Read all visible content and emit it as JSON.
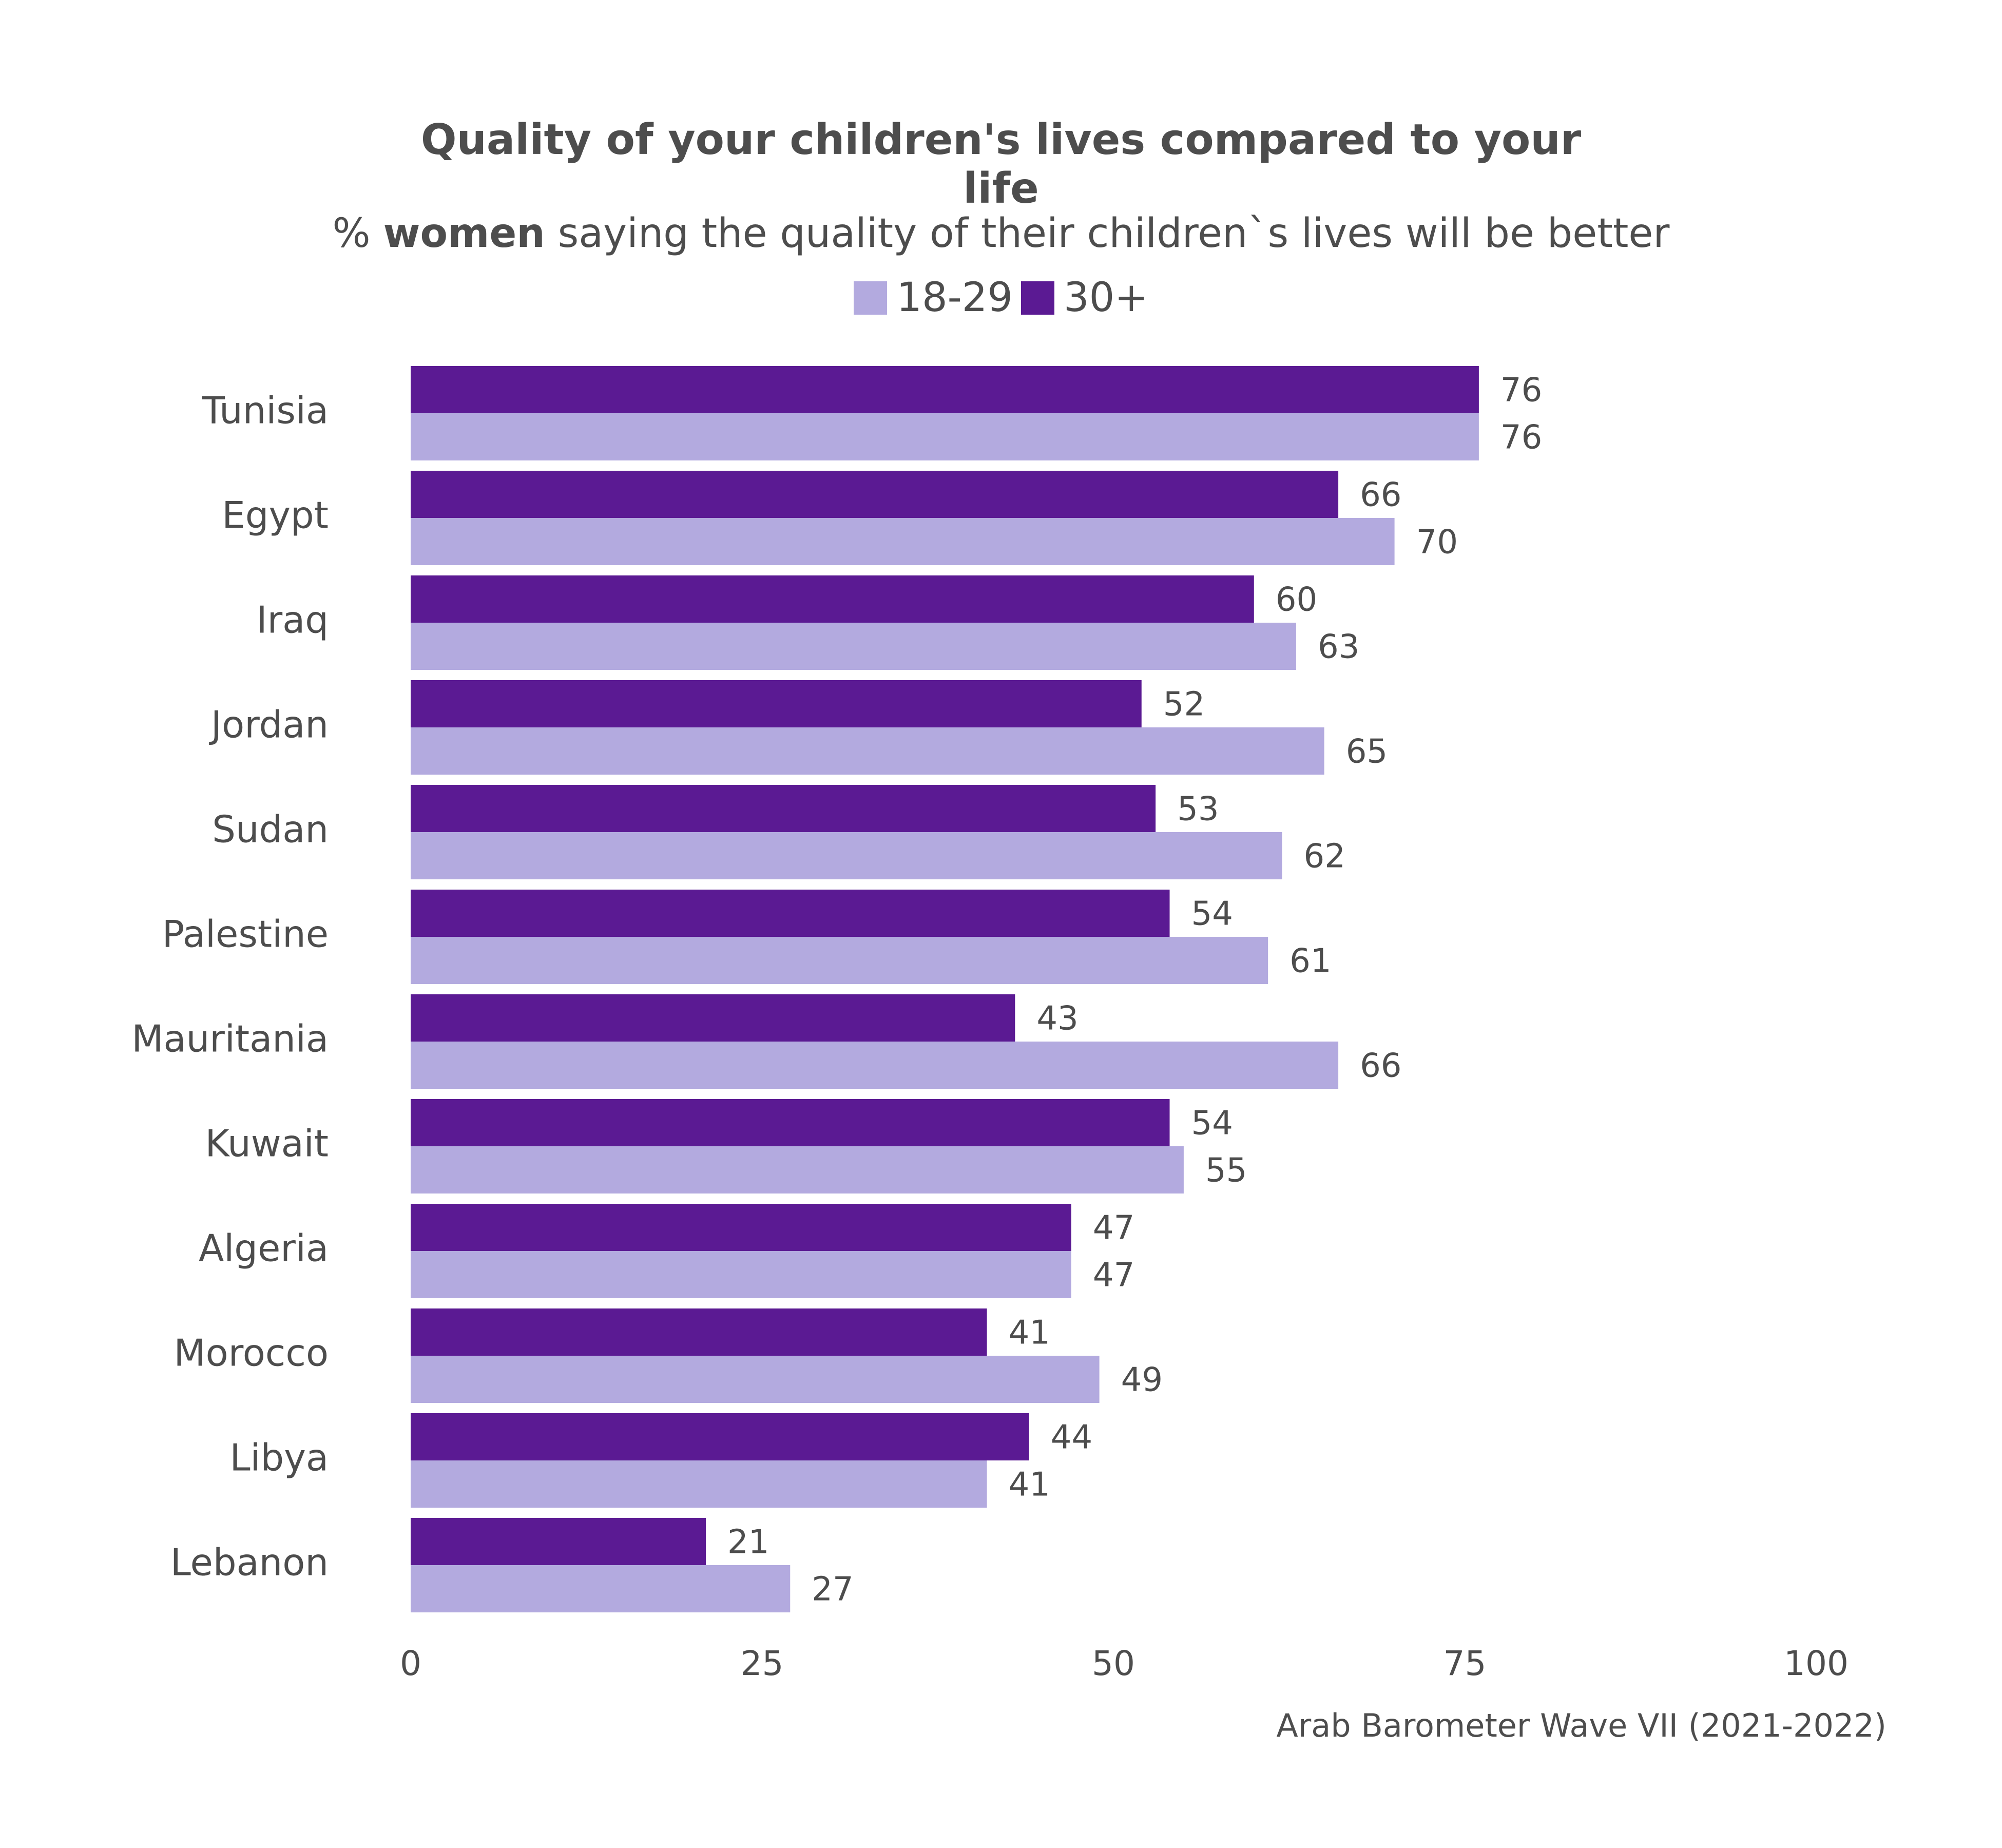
{
  "title_line1": "Quality of your children's lives compared to your",
  "title_line2": "life",
  "subtitle_prefix": "% ",
  "subtitle_bold": "women",
  "subtitle_rest": " saying the quality of their children`s lives will be better",
  "caption": "Arab Barometer Wave VII (2021-2022)",
  "colors": {
    "young": "#b3aadf",
    "older": "#5b1a93",
    "text": "#4d4d4d"
  },
  "legend": [
    {
      "label": "18-29",
      "color": "#b3aadf"
    },
    {
      "label": "30+",
      "color": "#5b1a93"
    }
  ],
  "chart_data": {
    "type": "bar",
    "orientation": "horizontal",
    "categories": [
      "Tunisia",
      "Egypt",
      "Iraq",
      "Jordan",
      "Sudan",
      "Palestine",
      "Mauritania",
      "Kuwait",
      "Algeria",
      "Morocco",
      "Libya",
      "Lebanon"
    ],
    "series": [
      {
        "name": "30+",
        "color": "#5b1a93",
        "values": [
          76,
          66,
          60,
          52,
          53,
          54,
          43,
          54,
          47,
          41,
          44,
          21
        ]
      },
      {
        "name": "18-29",
        "color": "#b3aadf",
        "values": [
          76,
          70,
          63,
          65,
          62,
          61,
          66,
          55,
          47,
          49,
          41,
          27
        ]
      }
    ],
    "xlim": [
      0,
      100
    ],
    "xticks": [
      0,
      25,
      50,
      75,
      100
    ],
    "grid": false,
    "legend_position": "top"
  }
}
